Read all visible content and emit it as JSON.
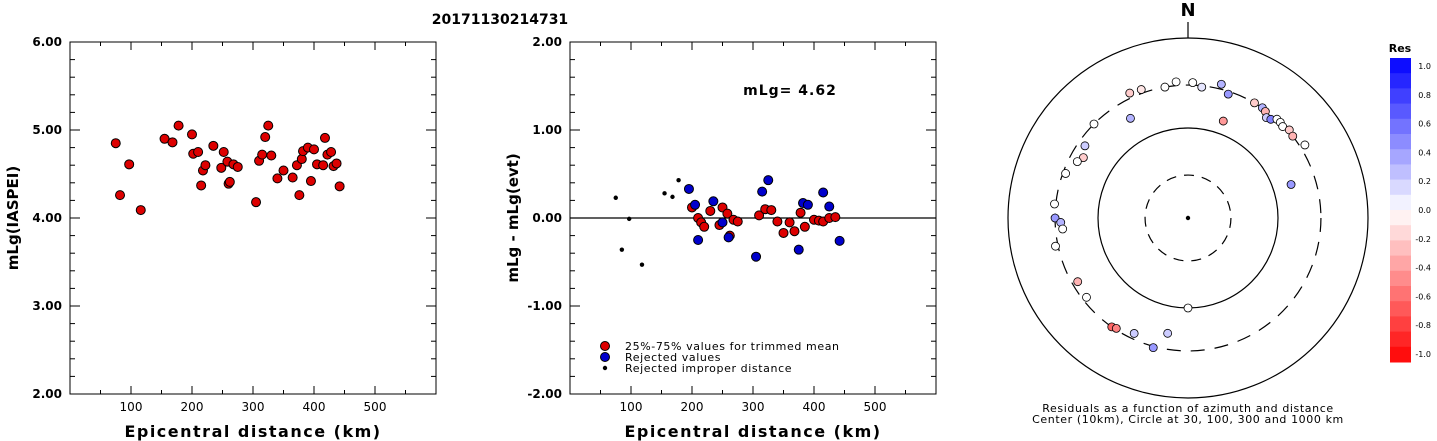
{
  "figure_title": "20171130214731",
  "left_chart": {
    "ylabel": "mLg(IASPEI)",
    "xlabel": "Epicentral distance (km)",
    "yticks": [
      "2.00",
      "3.00",
      "4.00",
      "5.00",
      "6.00"
    ],
    "xticks": [
      "100",
      "200",
      "300",
      "400",
      "500"
    ]
  },
  "middle_chart": {
    "ylabel": "mLg - mLg(evt)",
    "xlabel": "Epicentral distance (km)",
    "yticks": [
      "-2.00",
      "-1.00",
      "0.00",
      "1.00",
      "2.00"
    ],
    "xticks": [
      "100",
      "200",
      "300",
      "400",
      "500"
    ],
    "annotation": "mLg= 4.62",
    "legend": [
      {
        "label": "25%-75% values for trimmed mean",
        "color": "#dd0000"
      },
      {
        "label": "Rejected values",
        "color": "#0000cc"
      },
      {
        "label": "Rejected improper distance",
        "color": "#000000"
      }
    ]
  },
  "polar_chart": {
    "north_label": "N",
    "caption_line1": "Residuals as a function of azimuth and distance",
    "caption_line2": "Center (10km), Circle at 30, 100, 300 and 1000 km"
  },
  "colorbar": {
    "title": "Res",
    "labels": [
      "1.0",
      "0.8",
      "0.6",
      "0.4",
      "0.2",
      "0.0",
      "-0.2",
      "-0.4",
      "-0.6",
      "-0.8",
      "-1.0"
    ]
  },
  "chart_data": [
    {
      "type": "scatter",
      "name": "magnitude-vs-distance",
      "xlabel": "Epicentral distance (km)",
      "ylabel": "mLg(IASPEI)",
      "xlim": [
        0,
        600
      ],
      "ylim": [
        2.0,
        6.0
      ],
      "series": [
        {
          "color": "#dd0000",
          "points": [
            [
              75,
              4.85
            ],
            [
              82,
              4.26
            ],
            [
              97,
              4.61
            ],
            [
              116,
              4.09
            ],
            [
              155,
              4.9
            ],
            [
              168,
              4.86
            ],
            [
              178,
              5.05
            ],
            [
              200,
              4.95
            ],
            [
              202,
              4.73
            ],
            [
              210,
              4.75
            ],
            [
              215,
              4.37
            ],
            [
              218,
              4.54
            ],
            [
              222,
              4.6
            ],
            [
              235,
              4.82
            ],
            [
              248,
              4.57
            ],
            [
              252,
              4.75
            ],
            [
              258,
              4.64
            ],
            [
              260,
              4.39
            ],
            [
              262,
              4.41
            ],
            [
              268,
              4.61
            ],
            [
              275,
              4.58
            ],
            [
              305,
              4.18
            ],
            [
              310,
              4.65
            ],
            [
              315,
              4.72
            ],
            [
              320,
              4.92
            ],
            [
              325,
              5.05
            ],
            [
              330,
              4.71
            ],
            [
              340,
              4.45
            ],
            [
              350,
              4.54
            ],
            [
              365,
              4.46
            ],
            [
              372,
              4.6
            ],
            [
              376,
              4.26
            ],
            [
              380,
              4.67
            ],
            [
              382,
              4.76
            ],
            [
              390,
              4.8
            ],
            [
              395,
              4.42
            ],
            [
              400,
              4.78
            ],
            [
              405,
              4.61
            ],
            [
              415,
              4.6
            ],
            [
              418,
              4.91
            ],
            [
              422,
              4.72
            ],
            [
              428,
              4.75
            ],
            [
              432,
              4.59
            ],
            [
              437,
              4.62
            ],
            [
              442,
              4.36
            ]
          ]
        }
      ]
    },
    {
      "type": "scatter",
      "name": "residual-vs-distance",
      "xlabel": "Epicentral distance (km)",
      "ylabel": "mLg - mLg(evt)",
      "xlim": [
        0,
        600
      ],
      "ylim": [
        -2.0,
        2.0
      ],
      "series": [
        {
          "name": "25%-75% values for trimmed mean",
          "color": "#dd0000",
          "points": [
            [
              200,
              0.12
            ],
            [
              210,
              0.0
            ],
            [
              215,
              -0.05
            ],
            [
              220,
              -0.1
            ],
            [
              230,
              0.08
            ],
            [
              245,
              -0.08
            ],
            [
              250,
              0.12
            ],
            [
              258,
              0.05
            ],
            [
              262,
              -0.2
            ],
            [
              268,
              -0.02
            ],
            [
              275,
              -0.04
            ],
            [
              310,
              0.03
            ],
            [
              320,
              0.1
            ],
            [
              330,
              0.09
            ],
            [
              340,
              -0.04
            ],
            [
              350,
              -0.17
            ],
            [
              360,
              -0.05
            ],
            [
              368,
              -0.15
            ],
            [
              378,
              0.06
            ],
            [
              385,
              -0.1
            ],
            [
              400,
              -0.02
            ],
            [
              408,
              -0.03
            ],
            [
              415,
              -0.04
            ],
            [
              425,
              0.0
            ],
            [
              435,
              0.01
            ]
          ]
        },
        {
          "name": "Rejected values",
          "color": "#0000cc",
          "points": [
            [
              195,
              0.33
            ],
            [
              205,
              0.15
            ],
            [
              210,
              -0.25
            ],
            [
              235,
              0.19
            ],
            [
              250,
              -0.05
            ],
            [
              260,
              -0.22
            ],
            [
              305,
              -0.44
            ],
            [
              315,
              0.3
            ],
            [
              325,
              0.43
            ],
            [
              375,
              -0.36
            ],
            [
              382,
              0.17
            ],
            [
              390,
              0.15
            ],
            [
              415,
              0.29
            ],
            [
              425,
              0.13
            ],
            [
              442,
              -0.26
            ]
          ]
        },
        {
          "name": "Rejected improper distance",
          "color": "#000000",
          "points": [
            [
              75,
              0.23
            ],
            [
              85,
              -0.36
            ],
            [
              97,
              -0.01
            ],
            [
              118,
              -0.53
            ],
            [
              155,
              0.28
            ],
            [
              168,
              0.24
            ],
            [
              178,
              0.43
            ]
          ]
        }
      ],
      "reference_line_y": 0.0
    },
    {
      "type": "scatter",
      "name": "residual-azimuth-distance-polar",
      "rings_km": [
        30,
        100,
        300,
        1000
      ],
      "center_km": 10,
      "points": [
        {
          "azimuth_deg": 335,
          "distance_km": 340,
          "residual": -0.2
        },
        {
          "azimuth_deg": 340,
          "distance_km": 330,
          "residual": -0.1
        },
        {
          "azimuth_deg": 350,
          "distance_km": 300,
          "residual": 0.0
        },
        {
          "azimuth_deg": 355,
          "distance_km": 330,
          "residual": 0.0
        },
        {
          "azimuth_deg": 2,
          "distance_km": 320,
          "residual": 0.0
        },
        {
          "azimuth_deg": 6,
          "distance_km": 290,
          "residual": 0.1
        },
        {
          "azimuth_deg": 14,
          "distance_km": 340,
          "residual": 0.3
        },
        {
          "azimuth_deg": 18,
          "distance_km": 280,
          "residual": 0.4
        },
        {
          "azimuth_deg": 315,
          "distance_km": 300,
          "residual": 0.0
        },
        {
          "azimuth_deg": 305,
          "distance_km": 250,
          "residual": 0.2
        },
        {
          "azimuth_deg": 300,
          "distance_km": 220,
          "residual": -0.2
        },
        {
          "azimuth_deg": 297,
          "distance_km": 240,
          "residual": 0.0
        },
        {
          "azimuth_deg": 290,
          "distance_km": 280,
          "residual": 0.0
        },
        {
          "azimuth_deg": 276,
          "distance_km": 310,
          "residual": 0.0
        },
        {
          "azimuth_deg": 270,
          "distance_km": 300,
          "residual": 0.4
        },
        {
          "azimuth_deg": 268,
          "distance_km": 260,
          "residual": 0.3
        },
        {
          "azimuth_deg": 265,
          "distance_km": 250,
          "residual": 0.0
        },
        {
          "azimuth_deg": 258,
          "distance_km": 320,
          "residual": 0.0
        },
        {
          "azimuth_deg": 240,
          "distance_km": 260,
          "residual": -0.3
        },
        {
          "azimuth_deg": 232,
          "distance_km": 270,
          "residual": 0.0
        },
        {
          "azimuth_deg": 215,
          "distance_km": 300,
          "residual": -0.6
        },
        {
          "azimuth_deg": 213,
          "distance_km": 290,
          "residual": -0.5
        },
        {
          "azimuth_deg": 205,
          "distance_km": 260,
          "residual": 0.2
        },
        {
          "azimuth_deg": 195,
          "distance_km": 310,
          "residual": 0.4
        },
        {
          "azimuth_deg": 190,
          "distance_km": 200,
          "residual": 0.2
        },
        {
          "azimuth_deg": 180,
          "distance_km": 100,
          "residual": 0.0
        },
        {
          "azimuth_deg": 30,
          "distance_km": 300,
          "residual": -0.2
        },
        {
          "azimuth_deg": 34,
          "distance_km": 300,
          "residual": 0.3
        },
        {
          "azimuth_deg": 36,
          "distance_km": 290,
          "residual": -0.3
        },
        {
          "azimuth_deg": 38,
          "distance_km": 260,
          "residual": 0.2
        },
        {
          "azimuth_deg": 40,
          "distance_km": 270,
          "residual": 0.5
        },
        {
          "azimuth_deg": 42,
          "distance_km": 300,
          "residual": 0.0
        },
        {
          "azimuth_deg": 44,
          "distance_km": 300,
          "residual": 0.0
        },
        {
          "azimuth_deg": 46,
          "distance_km": 290,
          "residual": 0.0
        },
        {
          "azimuth_deg": 49,
          "distance_km": 310,
          "residual": -0.2
        },
        {
          "azimuth_deg": 52,
          "distance_km": 300,
          "residual": -0.3
        },
        {
          "azimuth_deg": 58,
          "distance_km": 340,
          "residual": 0.0
        },
        {
          "azimuth_deg": 330,
          "distance_km": 190,
          "residual": 0.3
        },
        {
          "azimuth_deg": 20,
          "distance_km": 140,
          "residual": -0.4
        },
        {
          "azimuth_deg": 72,
          "distance_km": 160,
          "residual": 0.4
        }
      ]
    }
  ]
}
